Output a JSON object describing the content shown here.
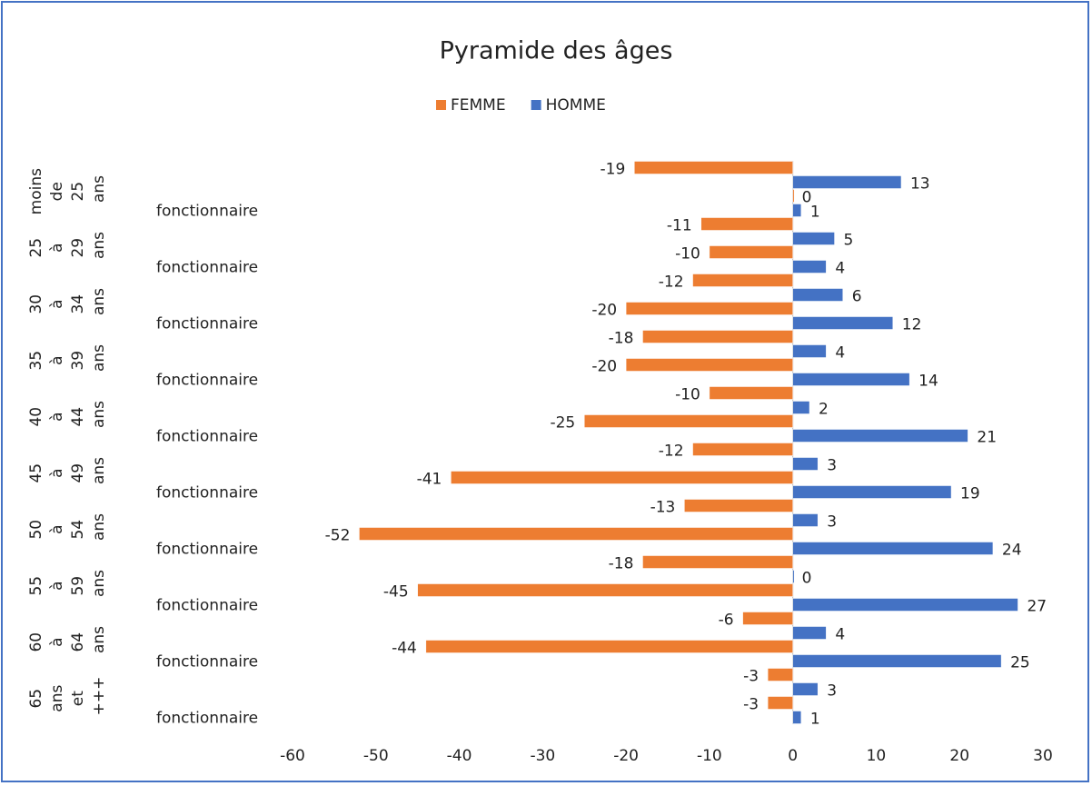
{
  "chart_data": {
    "type": "bar",
    "orientation": "horizontal",
    "title": "Pyramide des âges",
    "group_labels": [
      "moins de 25 ans",
      "25 à 29 ans",
      "30 à 34 ans",
      "35 à 39 ans",
      "40 à 44 ans",
      "45 à 49 ans",
      "50 à 54 ans",
      "55 à 59 ans",
      "60 à 64 ans",
      "65 ans et +++"
    ],
    "categories": [
      null,
      "fonctionnaire",
      null,
      "fonctionnaire",
      null,
      "fonctionnaire",
      null,
      "fonctionnaire",
      null,
      "fonctionnaire",
      null,
      "fonctionnaire",
      null,
      "fonctionnaire",
      null,
      "fonctionnaire",
      null,
      "fonctionnaire",
      null,
      "fonctionnaire"
    ],
    "series": [
      {
        "name": "FEMME",
        "color": "#ed7d31",
        "values": [
          -19,
          0,
          -11,
          -10,
          -12,
          -20,
          -18,
          -20,
          -10,
          -25,
          -12,
          -41,
          -13,
          -52,
          -18,
          -45,
          -6,
          -44,
          -3,
          -3
        ]
      },
      {
        "name": "HOMME",
        "color": "#4472c4",
        "values": [
          13,
          1,
          5,
          4,
          6,
          12,
          4,
          14,
          2,
          21,
          3,
          19,
          3,
          24,
          0,
          27,
          4,
          25,
          3,
          1
        ]
      }
    ],
    "xlim": [
      -60,
      30
    ],
    "xticks": [
      -60,
      -50,
      -40,
      -30,
      -20,
      -10,
      0,
      10,
      20,
      30
    ],
    "legend": "top",
    "grid": false
  }
}
